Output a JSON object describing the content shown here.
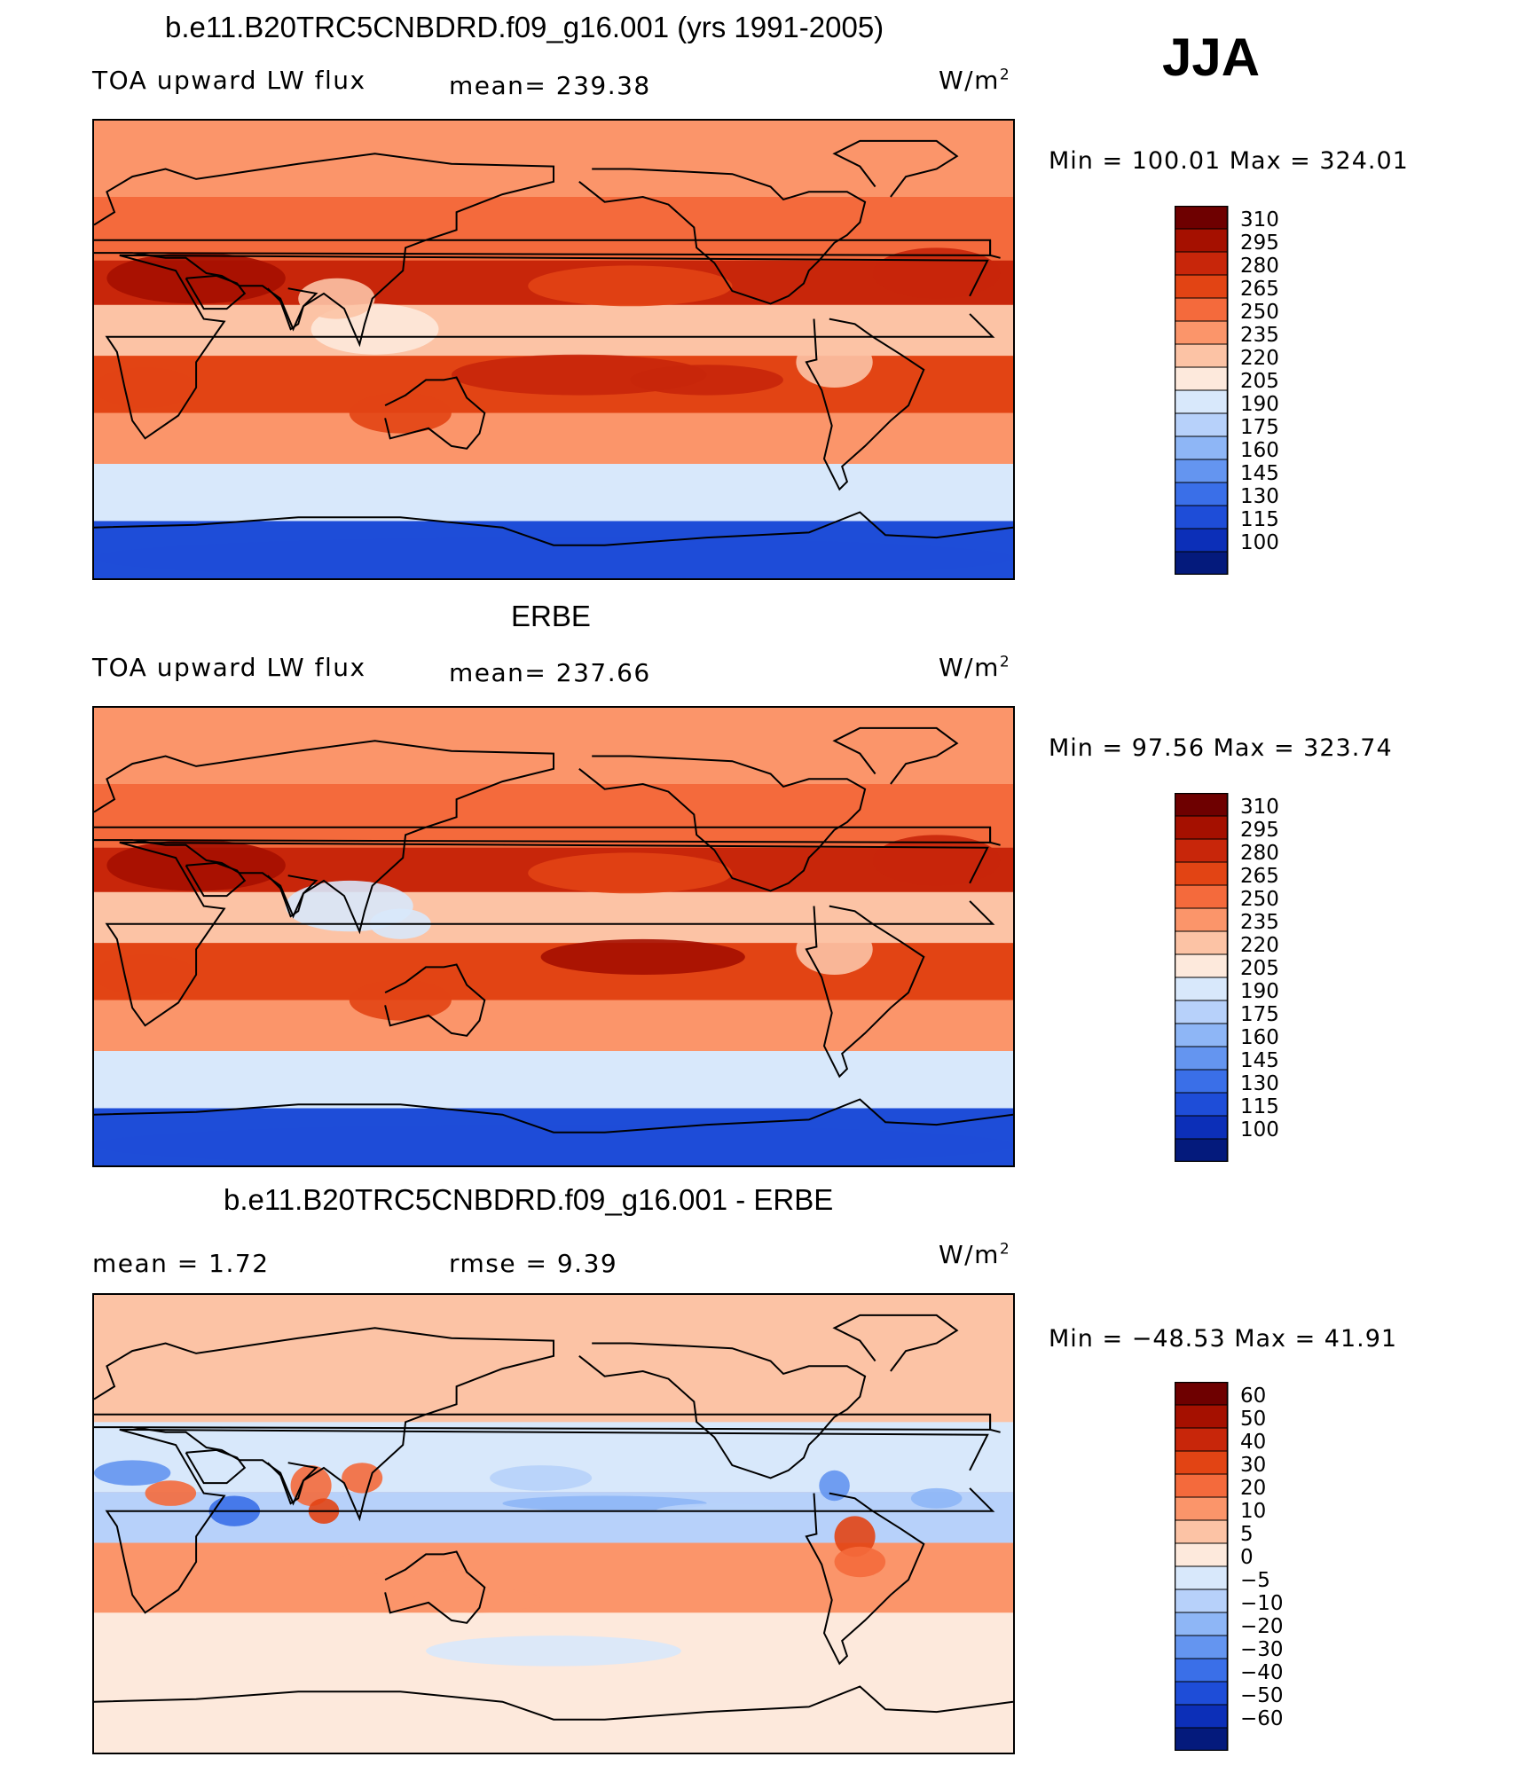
{
  "season": "JJA",
  "units": "W/m",
  "units_sup": "2",
  "panels": [
    {
      "title": "b.e11.B20TRC5CNBDRD.f09_g16.001 (yrs 1991-2005)",
      "left_label": "TOA upward LW flux",
      "mid_label": "mean=  239.38",
      "minmax": "Min  =  100.01  Max  =  324.01"
    },
    {
      "title": "ERBE",
      "left_label": "TOA upward LW flux",
      "mid_label": "mean=  237.66",
      "minmax": "Min  =    97.56  Max  =  323.74"
    },
    {
      "title": "b.e11.B20TRC5CNBDRD.f09_g16.001 - ERBE",
      "left_label": "mean  =      1.72",
      "mid_label": "rmse  =      9.39",
      "minmax": "Min  =  −48.53  Max  =     41.91"
    }
  ],
  "chart_data": [
    {
      "type": "heatmap",
      "title": "b.e11.B20TRC5CNBDRD.f09_g16.001 (yrs 1991-2005)",
      "variable": "TOA upward LW flux",
      "units": "W/m2",
      "mean": 239.38,
      "min": 100.01,
      "max": 324.01,
      "colorbar_levels": [
        "310",
        "295",
        "280",
        "265",
        "250",
        "235",
        "220",
        "205",
        "190",
        "175",
        "160",
        "145",
        "130",
        "115",
        "100"
      ],
      "colorbar_colors": [
        "#6e0000",
        "#a51000",
        "#c8260a",
        "#e24414",
        "#f46a3c",
        "#fb956a",
        "#fcc3a5",
        "#fde9dc",
        "#d8e8fb",
        "#b7d1fa",
        "#8eb6f6",
        "#6495f0",
        "#3a6fe8",
        "#1e4dd8",
        "#0c2fb8",
        "#041a7c"
      ],
      "latitude_band_estimate": [
        {
          "lat": 75,
          "value": 235
        },
        {
          "lat": 45,
          "value": 250
        },
        {
          "lat": 25,
          "value": 280
        },
        {
          "lat": 10,
          "value": 225
        },
        {
          "lat": -15,
          "value": 275
        },
        {
          "lat": -35,
          "value": 245
        },
        {
          "lat": -55,
          "value": 200
        },
        {
          "lat": -80,
          "value": 125
        }
      ]
    },
    {
      "type": "heatmap",
      "title": "ERBE",
      "variable": "TOA upward LW flux",
      "units": "W/m2",
      "mean": 237.66,
      "min": 97.56,
      "max": 323.74,
      "colorbar_levels": [
        "310",
        "295",
        "280",
        "265",
        "250",
        "235",
        "220",
        "205",
        "190",
        "175",
        "160",
        "145",
        "130",
        "115",
        "100"
      ],
      "colorbar_colors": [
        "#6e0000",
        "#a51000",
        "#c8260a",
        "#e24414",
        "#f46a3c",
        "#fb956a",
        "#fcc3a5",
        "#fde9dc",
        "#d8e8fb",
        "#b7d1fa",
        "#8eb6f6",
        "#6495f0",
        "#3a6fe8",
        "#1e4dd8",
        "#0c2fb8",
        "#041a7c"
      ],
      "latitude_band_estimate": [
        {
          "lat": 75,
          "value": 235
        },
        {
          "lat": 45,
          "value": 250
        },
        {
          "lat": 25,
          "value": 280
        },
        {
          "lat": 10,
          "value": 230
        },
        {
          "lat": -15,
          "value": 275
        },
        {
          "lat": -35,
          "value": 245
        },
        {
          "lat": -55,
          "value": 200
        },
        {
          "lat": -80,
          "value": 120
        }
      ]
    },
    {
      "type": "heatmap",
      "title": "b.e11.B20TRC5CNBDRD.f09_g16.001 - ERBE",
      "units": "W/m2",
      "mean": 1.72,
      "rmse": 9.39,
      "min": -48.53,
      "max": 41.91,
      "colorbar_levels": [
        "60",
        "50",
        "40",
        "30",
        "20",
        "10",
        "5",
        "0",
        "−5",
        "−10",
        "−20",
        "−30",
        "−40",
        "−50",
        "−60"
      ],
      "colorbar_colors": [
        "#6e0000",
        "#a51000",
        "#c8260a",
        "#e24414",
        "#f46a3c",
        "#fb956a",
        "#fcc3a5",
        "#fde9dc",
        "#d8e8fb",
        "#b7d1fa",
        "#8eb6f6",
        "#6495f0",
        "#3a6fe8",
        "#1e4dd8",
        "#0c2fb8",
        "#041a7c"
      ],
      "latitude_band_estimate": [
        {
          "lat": 60,
          "value": 5
        },
        {
          "lat": 20,
          "value": -5
        },
        {
          "lat": 5,
          "value": -10
        },
        {
          "lat": -20,
          "value": 10
        },
        {
          "lat": -50,
          "value": 0
        }
      ]
    }
  ]
}
